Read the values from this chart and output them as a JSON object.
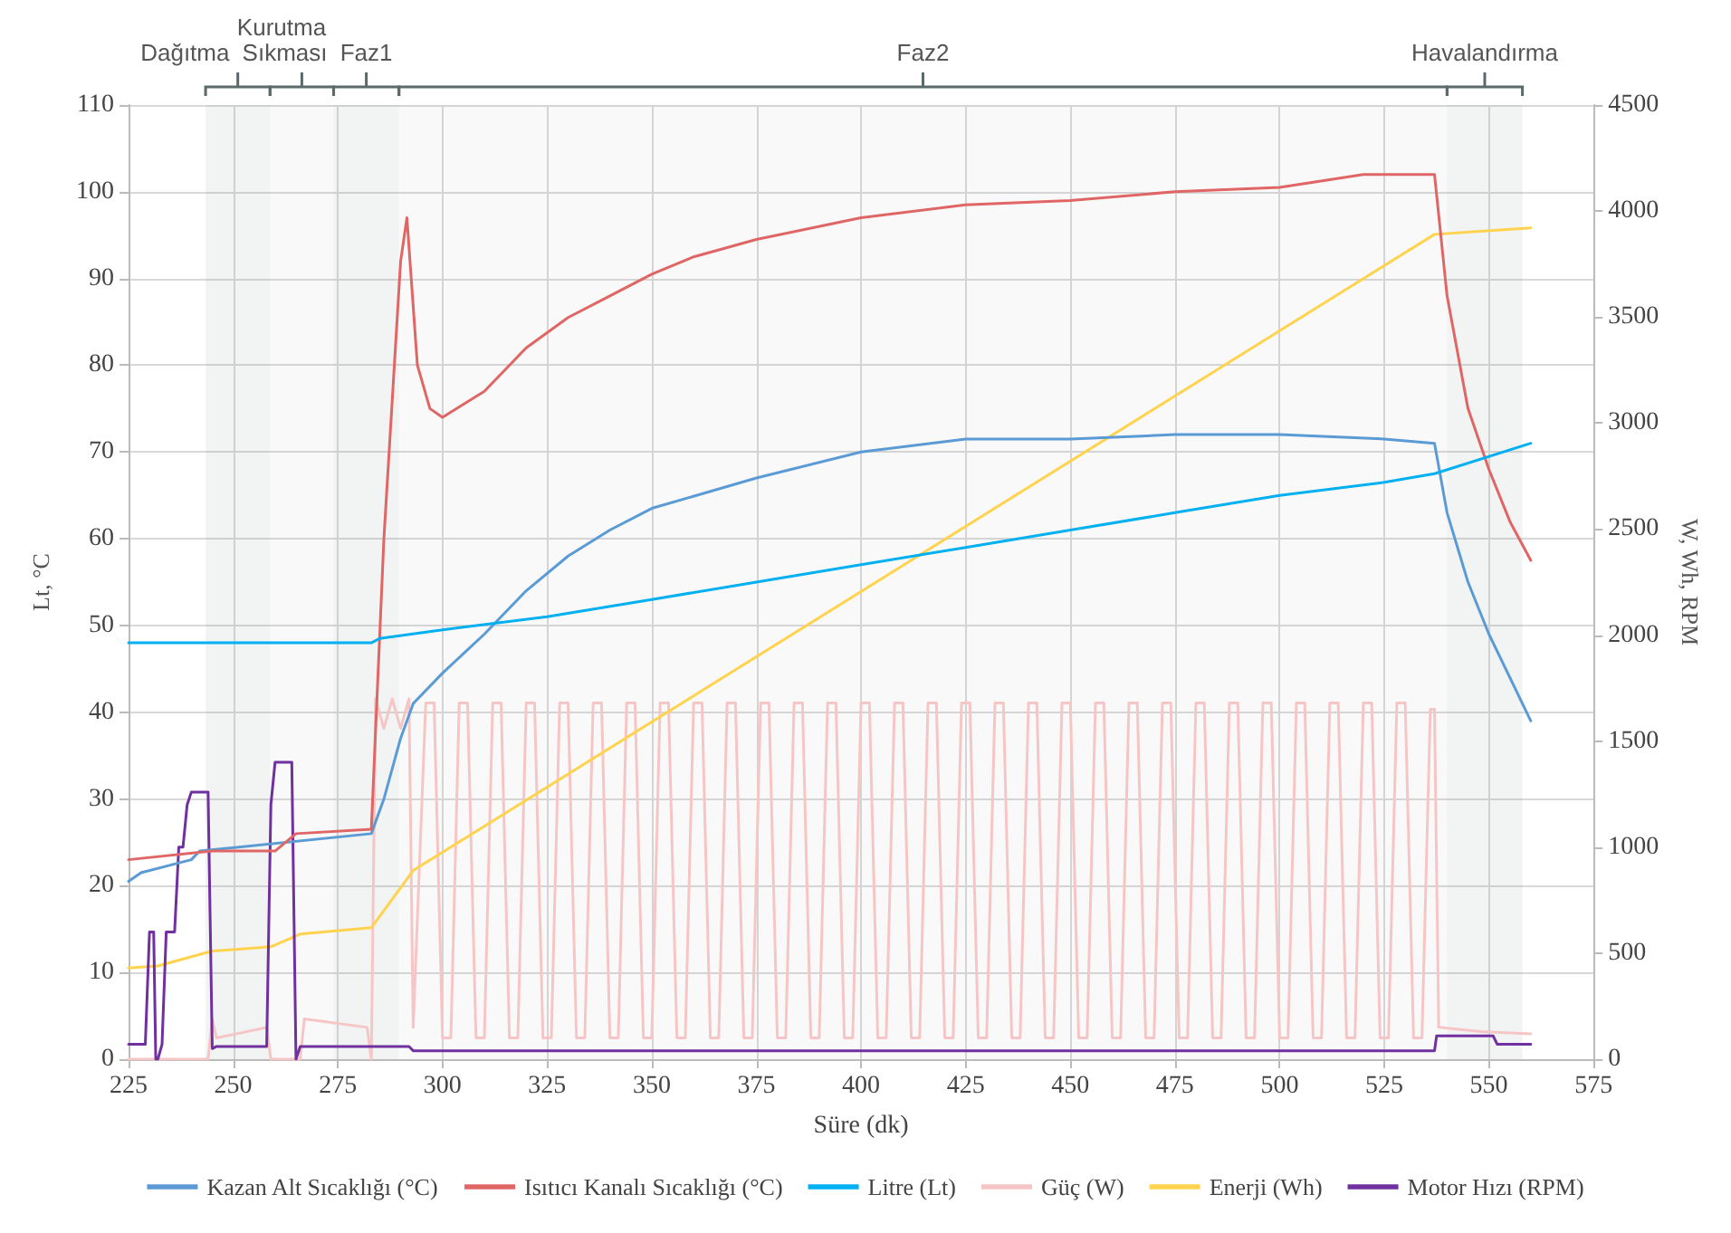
{
  "chart_data": {
    "type": "line",
    "xlabel": "Süre (dk)",
    "ylabel": "Lt, °C",
    "y2label": "W, Wh, RPM",
    "xlim": [
      225,
      575
    ],
    "xticks": [
      225,
      250,
      275,
      300,
      325,
      350,
      375,
      400,
      425,
      450,
      475,
      500,
      525,
      550,
      575
    ],
    "ylim": [
      0,
      110
    ],
    "yticks": [
      0,
      10,
      20,
      30,
      40,
      50,
      60,
      70,
      80,
      90,
      100,
      110
    ],
    "y2lim": [
      0,
      4500
    ],
    "y2ticks": [
      0,
      500,
      1000,
      1500,
      2000,
      2500,
      3000,
      3500,
      4000,
      4500
    ],
    "grid": true,
    "legend": "bottom",
    "marker": "none",
    "line_style": "solid",
    "bands": [
      {
        "axis": "x",
        "from": 243.4,
        "to": 258.8,
        "label": "Dağıtma"
      },
      {
        "axis": "x",
        "from": 258.8,
        "to": 274,
        "label": "Kurutma Sıkması"
      },
      {
        "axis": "x",
        "from": 274,
        "to": 289.6,
        "label": "Faz1"
      },
      {
        "axis": "x",
        "from": 289.6,
        "to": 540,
        "label": "Faz2"
      },
      {
        "axis": "x",
        "from": 540,
        "to": 558,
        "label": "Havalandırma"
      }
    ],
    "series": [
      {
        "name": "Kazan Alt Sıcaklığı (°C)",
        "color": "#5b9bd5",
        "x": [
          225,
          228,
          240,
          242,
          283,
          286,
          290,
          293,
          300,
          310,
          320,
          330,
          340,
          350,
          375,
          400,
          425,
          450,
          475,
          500,
          525,
          537,
          540,
          545,
          550,
          555,
          560
        ],
        "values": [
          20.5,
          21.5,
          23,
          24,
          26,
          30,
          37,
          41,
          44.5,
          49,
          54,
          58,
          61,
          63.5,
          67,
          70,
          71.5,
          71.5,
          72,
          72,
          71.5,
          71,
          63,
          55,
          49,
          44,
          39
        ]
      },
      {
        "name": "Isıtıcı Kanalı Sıcaklığı (°C)",
        "color": "#e06666",
        "x": [
          225,
          245,
          260,
          265,
          283,
          286,
          290,
          291.5,
          294,
          297,
          300,
          310,
          320,
          330,
          340,
          350,
          360,
          375,
          400,
          425,
          450,
          475,
          500,
          520,
          537,
          540,
          545,
          550,
          555,
          560
        ],
        "values": [
          23,
          24,
          24,
          26,
          26.5,
          60,
          92,
          97,
          80,
          75,
          74,
          77,
          82,
          85.5,
          88,
          90.5,
          92.5,
          94.5,
          97,
          98.5,
          99,
          100,
          100.5,
          102,
          102,
          88,
          75,
          68,
          62,
          57.5
        ]
      },
      {
        "name": "Litre (Lt)",
        "color": "#00b0f0",
        "x": [
          225,
          283,
          285,
          300,
          325,
          350,
          375,
          400,
          425,
          450,
          475,
          500,
          525,
          537,
          560
        ],
        "values": [
          48,
          48,
          48.5,
          49.5,
          51,
          53,
          55,
          57,
          59,
          61,
          63,
          65,
          66.5,
          67.5,
          71
        ]
      },
      {
        "name": "Güç (W)",
        "color": "#f6c6c6",
        "axis": "y2",
        "x": [
          225,
          244,
          245,
          246,
          258,
          259,
          266,
          267,
          282,
          283,
          284,
          286,
          288,
          290,
          292,
          293,
          296,
          298,
          300,
          302,
          304,
          306,
          308,
          310,
          312,
          314,
          316,
          318,
          320,
          322,
          324,
          326,
          328,
          330,
          332,
          334,
          336,
          338,
          340,
          342,
          344,
          346,
          348,
          350,
          352,
          354,
          356,
          358,
          360,
          362,
          364,
          366,
          368,
          370,
          372,
          374,
          376,
          378,
          380,
          382,
          384,
          386,
          388,
          390,
          392,
          394,
          396,
          398,
          400,
          402,
          404,
          406,
          408,
          410,
          412,
          414,
          416,
          418,
          420,
          422,
          424,
          426,
          428,
          430,
          432,
          434,
          436,
          438,
          440,
          442,
          444,
          446,
          448,
          450,
          452,
          454,
          456,
          458,
          460,
          462,
          464,
          466,
          468,
          470,
          472,
          474,
          476,
          478,
          480,
          482,
          484,
          486,
          488,
          490,
          492,
          494,
          496,
          498,
          500,
          502,
          504,
          506,
          508,
          510,
          512,
          514,
          516,
          518,
          520,
          522,
          524,
          526,
          528,
          530,
          532,
          534,
          536,
          537,
          538,
          548,
          560
        ],
        "values": [
          0,
          0,
          190,
          100,
          150,
          0,
          0,
          190,
          150,
          0,
          1700,
          1560,
          1700,
          1560,
          1700,
          150,
          1680,
          1680,
          100,
          100,
          1680,
          1680,
          100,
          100,
          1680,
          1680,
          100,
          100,
          1680,
          1680,
          100,
          100,
          1680,
          1680,
          100,
          100,
          1680,
          1680,
          100,
          100,
          1680,
          1680,
          100,
          100,
          1680,
          1680,
          100,
          100,
          1680,
          1680,
          100,
          100,
          1680,
          1680,
          100,
          100,
          1680,
          1680,
          100,
          100,
          1680,
          1680,
          100,
          100,
          1680,
          1680,
          100,
          100,
          1680,
          1680,
          100,
          100,
          1680,
          1680,
          100,
          100,
          1680,
          1680,
          100,
          100,
          1680,
          1680,
          100,
          100,
          1680,
          1680,
          100,
          100,
          1680,
          1680,
          100,
          100,
          1680,
          1680,
          100,
          100,
          1680,
          1680,
          100,
          100,
          1680,
          1680,
          100,
          100,
          1680,
          1680,
          100,
          100,
          1680,
          1680,
          100,
          100,
          1680,
          1680,
          100,
          100,
          1680,
          1680,
          100,
          100,
          1680,
          1680,
          100,
          100,
          1680,
          1680,
          100,
          100,
          1680,
          1680,
          100,
          100,
          1680,
          1680,
          100,
          100,
          1650,
          1650,
          150,
          130,
          120
        ]
      },
      {
        "name": "Enerji (Wh)",
        "color": "#ffd34d",
        "axis": "y2",
        "x": [
          225,
          232,
          245,
          259,
          266,
          283,
          293,
          537,
          560
        ],
        "values": [
          430,
          440,
          510,
          530,
          590,
          620,
          890,
          3890,
          3920
        ]
      },
      {
        "name": "Motor Hızı (RPM)",
        "color": "#7030a0",
        "axis": "y2",
        "x": [
          225,
          229,
          230,
          231,
          231.5,
          232,
          233,
          234,
          236,
          237,
          238,
          239,
          240,
          244,
          245,
          246,
          258,
          259,
          260,
          264,
          265,
          266,
          292,
          293,
          537,
          537.5,
          551,
          552,
          560
        ],
        "values": [
          70,
          70,
          600,
          600,
          0,
          0,
          70,
          600,
          600,
          1000,
          1000,
          1200,
          1260,
          1260,
          50,
          60,
          60,
          1200,
          1400,
          1400,
          0,
          60,
          60,
          40,
          40,
          110,
          110,
          70,
          70
        ]
      }
    ]
  }
}
